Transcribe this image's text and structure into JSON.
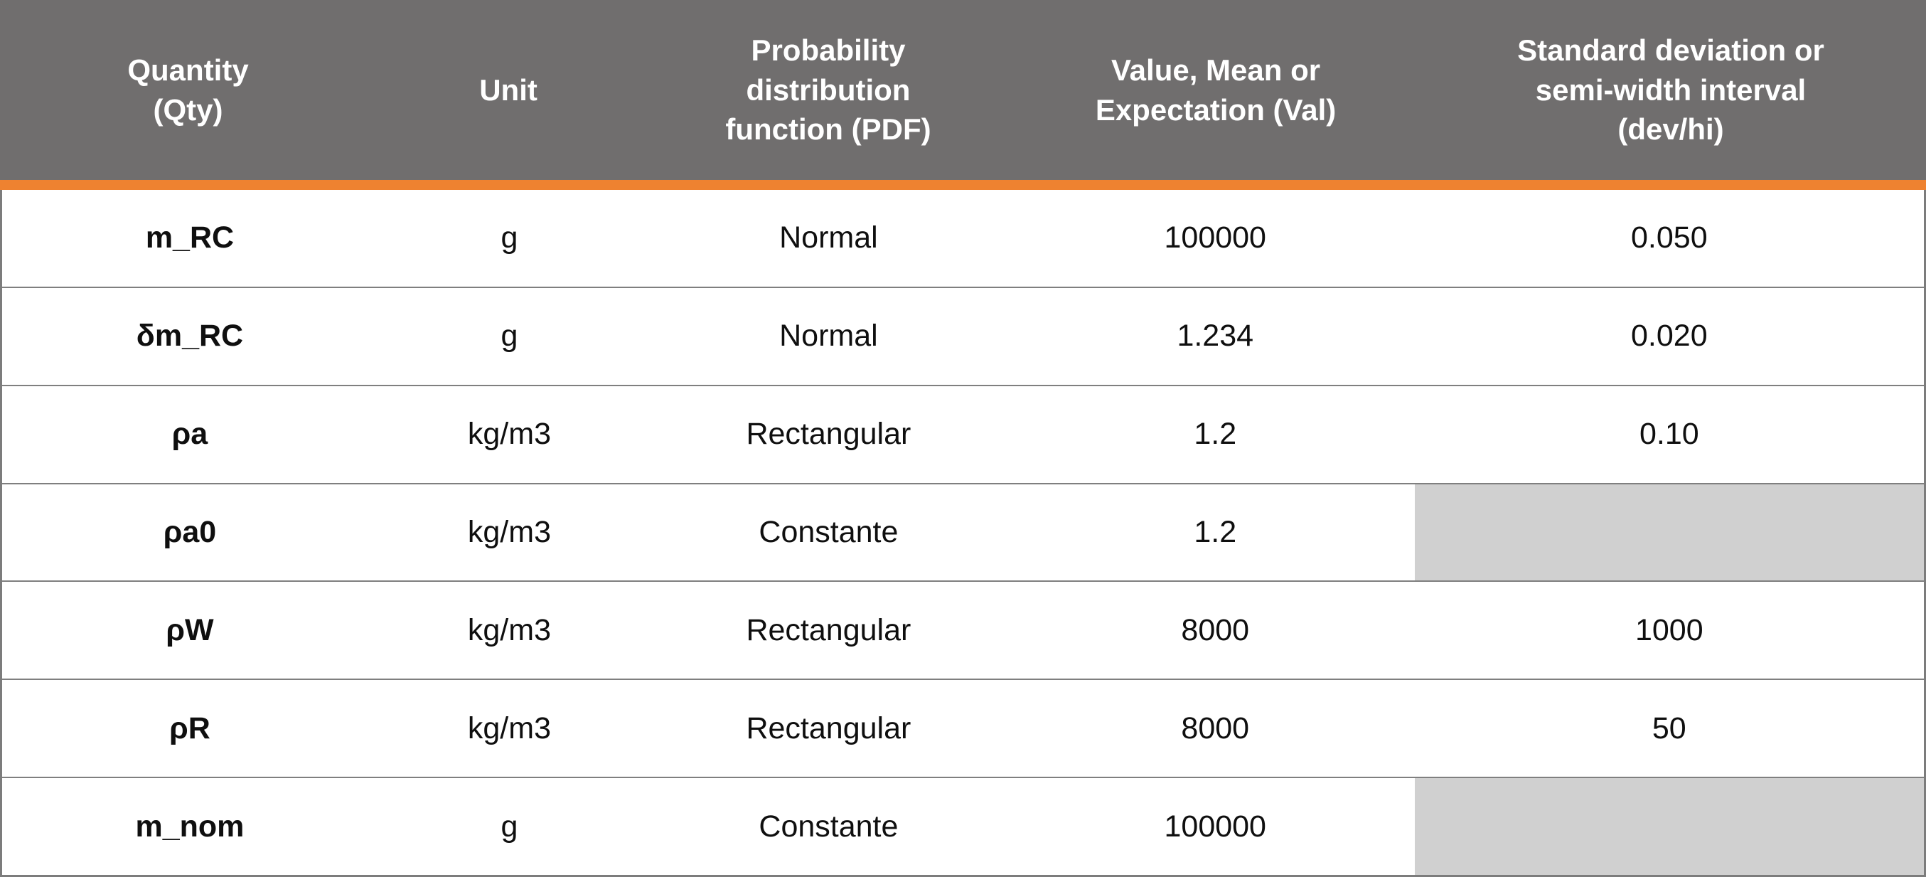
{
  "colors": {
    "header_bg": "#706E6E",
    "header_text": "#FFFFFF",
    "accent_bar": "#EE8230",
    "row_divider": "#7F7F7F",
    "shaded_cell_bg": "#D0D0D0",
    "body_text": "#0F0F0F"
  },
  "chart_data": {
    "type": "table",
    "columns": [
      {
        "id": "qty",
        "label": "Quantity\n(Qty)"
      },
      {
        "id": "unit",
        "label": "Unit"
      },
      {
        "id": "pdf",
        "label": "Probability\ndistribution\nfunction (PDF)"
      },
      {
        "id": "val",
        "label": "Value, Mean or\nExpectation (Val)"
      },
      {
        "id": "dev",
        "label": "Standard deviation or\nsemi-width interval\n(dev/hi)"
      }
    ],
    "rows": [
      {
        "qty": "m_RC",
        "unit": "g",
        "pdf": "Normal",
        "val": "100000",
        "dev": "0.050",
        "dev_shaded": false
      },
      {
        "qty": "δm_RC",
        "unit": "g",
        "pdf": "Normal",
        "val": "1.234",
        "dev": "0.020",
        "dev_shaded": false
      },
      {
        "qty": "ρa",
        "unit": "kg/m3",
        "pdf": "Rectangular",
        "val": "1.2",
        "dev": "0.10",
        "dev_shaded": false
      },
      {
        "qty": "ρa0",
        "unit": "kg/m3",
        "pdf": "Constante",
        "val": "1.2",
        "dev": "",
        "dev_shaded": true
      },
      {
        "qty": "ρW",
        "unit": "kg/m3",
        "pdf": "Rectangular",
        "val": "8000",
        "dev": "1000",
        "dev_shaded": false
      },
      {
        "qty": "ρR",
        "unit": "kg/m3",
        "pdf": "Rectangular",
        "val": "8000",
        "dev": "50",
        "dev_shaded": false
      },
      {
        "qty": "m_nom",
        "unit": "g",
        "pdf": "Constante",
        "val": "100000",
        "dev": "",
        "dev_shaded": true
      }
    ]
  }
}
